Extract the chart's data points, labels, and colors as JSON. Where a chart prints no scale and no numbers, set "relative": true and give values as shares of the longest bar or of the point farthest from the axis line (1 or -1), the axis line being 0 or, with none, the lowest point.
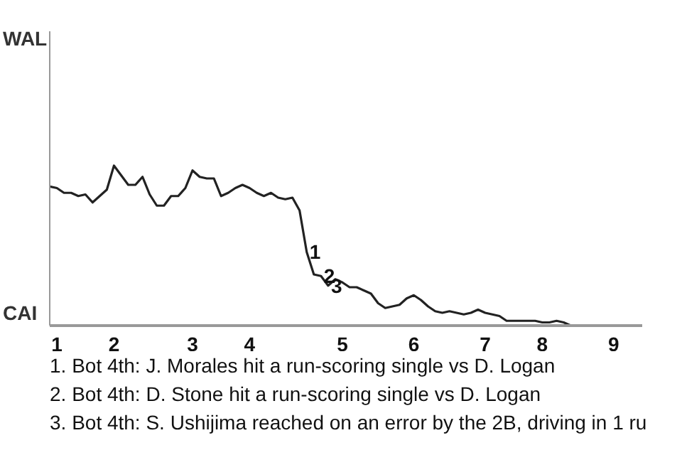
{
  "chart_data": {
    "type": "line",
    "relative": true,
    "categories": [
      null,
      "1",
      null,
      null,
      null,
      null,
      null,
      null,
      null,
      "2",
      null,
      null,
      null,
      null,
      null,
      null,
      null,
      null,
      null,
      null,
      "3",
      null,
      null,
      null,
      null,
      null,
      null,
      null,
      "4",
      null,
      null,
      null,
      null,
      null,
      null,
      null,
      null,
      null,
      null,
      null,
      null,
      "5",
      null,
      null,
      null,
      null,
      null,
      null,
      null,
      null,
      null,
      "6",
      null,
      null,
      null,
      null,
      null,
      null,
      null,
      null,
      null,
      "7",
      null,
      null,
      null,
      null,
      null,
      null,
      null,
      "8",
      null,
      null,
      null,
      null,
      null,
      null,
      null,
      null,
      null,
      "9",
      null,
      null,
      null,
      null
    ],
    "series": [
      {
        "color": "#222222",
        "values": [
          0.87,
          0.86,
          0.83,
          0.83,
          0.81,
          0.82,
          0.77,
          0.81,
          0.85,
          1,
          0.94,
          0.88,
          0.88,
          0.93,
          0.82,
          0.75,
          0.75,
          0.81,
          0.81,
          0.86,
          0.97,
          0.93,
          0.92,
          0.92,
          0.81,
          0.83,
          0.86,
          0.88,
          0.86,
          0.83,
          0.81,
          0.83,
          0.8,
          0.79,
          0.8,
          0.72,
          0.46,
          0.32,
          0.31,
          0.25,
          0.29,
          0.27,
          0.24,
          0.24,
          0.22,
          0.2,
          0.14,
          0.11,
          0.12,
          0.13,
          0.17,
          0.19,
          0.16,
          0.12,
          0.09,
          0.08,
          0.09,
          0.08,
          0.07,
          0.08,
          0.1,
          0.08,
          0.07,
          0.06,
          0.03,
          0.03,
          0.03,
          0.03,
          0.03,
          0.02,
          0.02,
          0.03,
          0.02,
          0,
          0,
          0,
          0,
          0,
          0,
          0,
          0,
          0,
          0,
          0
        ]
      }
    ],
    "annotations": [
      {
        "text": "1",
        "y": 0.46
      },
      {
        "text": "2",
        "y": 0.31
      },
      {
        "text": "3",
        "y": 0.25
      },
      "WAL",
      "CAI",
      "1. Bot 4th: J. Morales hit a run-scoring single vs D. Logan",
      "2. Bot 4th: D. Stone hit a run-scoring single vs D. Logan",
      "3. Bot 4th: S. Ushijima reached on an error by the 2B, driving in 1 ru"
    ]
  }
}
